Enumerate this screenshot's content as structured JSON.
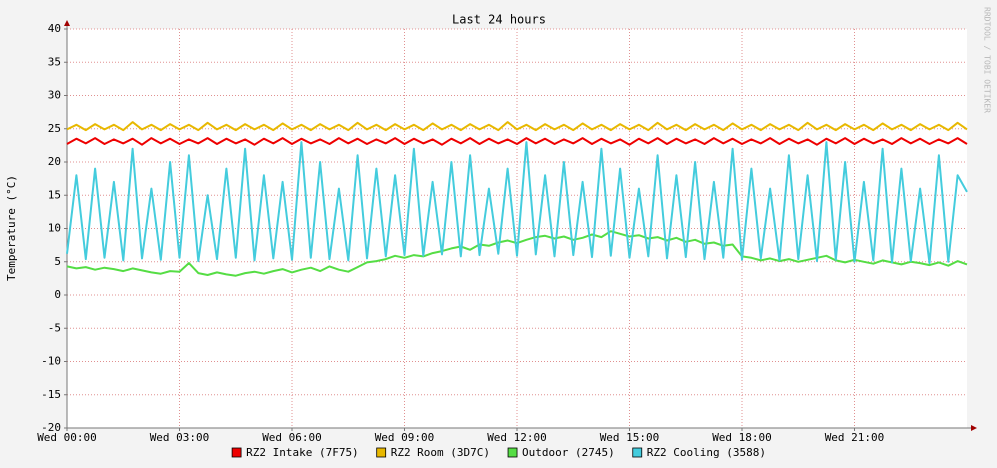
{
  "chart_data": {
    "type": "line",
    "title": "Last 24 hours",
    "y_label": "Temperature (°C)",
    "watermark": "RRDTOOL / TOBI OETIKER",
    "grid": true,
    "legend": "bottom",
    "xlim": [
      0,
      24
    ],
    "ylim": [
      -20,
      40
    ],
    "yticks": [
      -20,
      -15,
      -10,
      -5,
      0,
      5,
      10,
      15,
      20,
      25,
      30,
      35,
      40
    ],
    "xticks": [
      {
        "value": 0,
        "label": "Wed 00:00"
      },
      {
        "value": 3,
        "label": "Wed 03:00"
      },
      {
        "value": 6,
        "label": "Wed 06:00"
      },
      {
        "value": 9,
        "label": "Wed 09:00"
      },
      {
        "value": 12,
        "label": "Wed 12:00"
      },
      {
        "value": 15,
        "label": "Wed 15:00"
      },
      {
        "value": 18,
        "label": "Wed 18:00"
      },
      {
        "value": 21,
        "label": "Wed 21:00"
      }
    ],
    "x": [
      0,
      0.25,
      0.5,
      0.75,
      1,
      1.25,
      1.5,
      1.75,
      2,
      2.25,
      2.5,
      2.75,
      3,
      3.25,
      3.5,
      3.75,
      4,
      4.25,
      4.5,
      4.75,
      5,
      5.25,
      5.5,
      5.75,
      6,
      6.25,
      6.5,
      6.75,
      7,
      7.25,
      7.5,
      7.75,
      8,
      8.25,
      8.5,
      8.75,
      9,
      9.25,
      9.5,
      9.75,
      10,
      10.25,
      10.5,
      10.75,
      11,
      11.25,
      11.5,
      11.75,
      12,
      12.25,
      12.5,
      12.75,
      13,
      13.25,
      13.5,
      13.75,
      14,
      14.25,
      14.5,
      14.75,
      15,
      15.25,
      15.5,
      15.75,
      16,
      16.25,
      16.5,
      16.75,
      17,
      17.25,
      17.5,
      17.75,
      18,
      18.25,
      18.5,
      18.75,
      19,
      19.25,
      19.5,
      19.75,
      20,
      20.25,
      20.5,
      20.75,
      21,
      21.25,
      21.5,
      21.75,
      22,
      22.25,
      22.5,
      22.75,
      23,
      23.25,
      23.5,
      23.75,
      24
    ],
    "series": [
      {
        "name": "RZ2 Intake (7F75)",
        "color": "#ee0000",
        "values": [
          22.7,
          23.5,
          22.8,
          23.6,
          22.7,
          23.4,
          22.8,
          23.5,
          22.6,
          23.6,
          22.8,
          23.5,
          22.7,
          23.4,
          22.8,
          23.6,
          22.7,
          23.5,
          22.8,
          23.4,
          22.6,
          23.5,
          22.8,
          23.6,
          22.7,
          23.5,
          22.8,
          23.4,
          22.7,
          23.6,
          22.8,
          23.5,
          22.7,
          23.4,
          22.8,
          23.6,
          22.7,
          23.5,
          22.8,
          23.4,
          22.6,
          23.5,
          22.8,
          23.6,
          22.7,
          23.5,
          22.8,
          23.4,
          22.7,
          23.6,
          22.8,
          23.5,
          22.7,
          23.4,
          22.8,
          23.6,
          22.7,
          23.5,
          22.8,
          23.4,
          22.6,
          23.5,
          22.8,
          23.6,
          22.7,
          23.5,
          22.8,
          23.4,
          22.7,
          23.6,
          22.8,
          23.5,
          22.7,
          23.4,
          22.8,
          23.6,
          22.7,
          23.5,
          22.8,
          23.4,
          22.6,
          23.5,
          22.8,
          23.6,
          22.7,
          23.5,
          22.8,
          23.4,
          22.7,
          23.6,
          22.8,
          23.5,
          22.7,
          23.4,
          22.8,
          23.6,
          22.7
        ]
      },
      {
        "name": "RZ2 Room (3D7C)",
        "color": "#e8b800",
        "values": [
          24.9,
          25.6,
          24.8,
          25.7,
          24.9,
          25.6,
          24.8,
          26.0,
          24.9,
          25.6,
          24.8,
          25.7,
          24.9,
          25.6,
          24.8,
          25.9,
          24.9,
          25.6,
          24.8,
          25.7,
          24.9,
          25.6,
          24.8,
          25.8,
          24.9,
          25.6,
          24.8,
          25.7,
          24.9,
          25.6,
          24.8,
          25.9,
          24.9,
          25.6,
          24.8,
          25.7,
          24.9,
          25.6,
          24.8,
          25.8,
          24.9,
          25.6,
          24.8,
          25.7,
          24.9,
          25.6,
          24.8,
          26.0,
          24.9,
          25.6,
          24.8,
          25.7,
          24.9,
          25.6,
          24.8,
          25.8,
          24.9,
          25.6,
          24.8,
          25.7,
          24.9,
          25.6,
          24.8,
          25.9,
          24.9,
          25.6,
          24.8,
          25.7,
          24.9,
          25.6,
          24.8,
          25.8,
          24.9,
          25.6,
          24.8,
          25.7,
          24.9,
          25.6,
          24.8,
          25.9,
          24.9,
          25.6,
          24.8,
          25.7,
          24.9,
          25.6,
          24.8,
          25.8,
          24.9,
          25.6,
          24.8,
          25.7,
          24.9,
          25.6,
          24.8,
          25.9,
          24.9
        ]
      },
      {
        "name": "Outdoor (2745)",
        "color": "#55dd44",
        "values": [
          4.3,
          4.0,
          4.2,
          3.8,
          4.1,
          3.9,
          3.6,
          4.0,
          3.7,
          3.4,
          3.2,
          3.6,
          3.5,
          4.8,
          3.3,
          3.0,
          3.4,
          3.1,
          2.9,
          3.3,
          3.5,
          3.2,
          3.6,
          3.9,
          3.4,
          3.8,
          4.1,
          3.6,
          4.3,
          3.8,
          3.5,
          4.2,
          4.9,
          5.1,
          5.4,
          5.9,
          5.6,
          6.0,
          5.8,
          6.3,
          6.6,
          7.0,
          7.3,
          6.8,
          7.6,
          7.4,
          7.9,
          8.2,
          7.8,
          8.3,
          8.7,
          8.9,
          8.5,
          8.8,
          8.3,
          8.6,
          9.1,
          8.7,
          9.6,
          9.2,
          8.8,
          9.0,
          8.5,
          8.7,
          8.2,
          8.6,
          8.0,
          8.3,
          7.7,
          7.9,
          7.4,
          7.6,
          5.8,
          5.6,
          5.2,
          5.5,
          5.1,
          5.4,
          5.0,
          5.3,
          5.6,
          5.9,
          5.2,
          4.9,
          5.3,
          5.0,
          4.7,
          5.2,
          4.9,
          4.6,
          5.0,
          4.8,
          4.5,
          4.9,
          4.4,
          5.1,
          4.6
        ]
      },
      {
        "name": "RZ2 Cooling (3588)",
        "color": "#44ccdd",
        "values": [
          6.2,
          18,
          5.4,
          19,
          5.6,
          17,
          5.2,
          22,
          5.5,
          16,
          5.3,
          20,
          5.6,
          21,
          5.1,
          15,
          5.4,
          19,
          5.6,
          22,
          5.2,
          18,
          5.5,
          17,
          5.3,
          23,
          5.6,
          20,
          5.4,
          16,
          5.2,
          21,
          5.5,
          19,
          5.8,
          18,
          6.0,
          22,
          5.9,
          17,
          6.1,
          20,
          5.8,
          21,
          6.0,
          16,
          6.2,
          19,
          5.9,
          23,
          6.1,
          18,
          5.8,
          20,
          6.0,
          17,
          5.7,
          22,
          5.9,
          19,
          5.6,
          16,
          5.8,
          21,
          5.5,
          18,
          5.7,
          20,
          5.4,
          17,
          5.6,
          22,
          5.3,
          19,
          5.5,
          16,
          5.2,
          21,
          5.4,
          18,
          5.1,
          23,
          5.3,
          20,
          5.0,
          17,
          5.2,
          22,
          4.9,
          19,
          5.1,
          16,
          4.8,
          21,
          5.0,
          18,
          15.5
        ]
      }
    ]
  }
}
